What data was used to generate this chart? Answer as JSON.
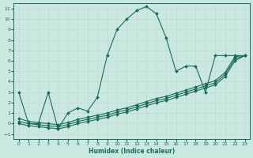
{
  "xlabel": "Humidex (Indice chaleur)",
  "bg_color": "#c8e8e0",
  "grid_color": "#d4e8e4",
  "line_color": "#1a6b5a",
  "marker": "D",
  "markersize": 2.0,
  "linewidth": 0.8,
  "xlim": [
    -0.5,
    23.5
  ],
  "ylim": [
    -1.5,
    11.5
  ],
  "xticks": [
    0,
    1,
    2,
    3,
    4,
    5,
    6,
    7,
    8,
    9,
    10,
    11,
    12,
    13,
    14,
    15,
    16,
    17,
    18,
    19,
    20,
    21,
    22,
    23
  ],
  "yticks": [
    -1,
    0,
    1,
    2,
    3,
    4,
    5,
    6,
    7,
    8,
    9,
    10,
    11
  ],
  "lines": [
    {
      "x": [
        0,
        1,
        2,
        3,
        4,
        5,
        6,
        7,
        8,
        9,
        10,
        11,
        12,
        13,
        14,
        15,
        16,
        17,
        18,
        19,
        20,
        21,
        22,
        23
      ],
      "y": [
        3.0,
        0.0,
        0.0,
        3.0,
        -0.5,
        1.0,
        1.5,
        1.2,
        2.5,
        6.5,
        9.0,
        10.0,
        10.8,
        11.2,
        10.5,
        8.2,
        5.0,
        5.5,
        5.5,
        3.0,
        6.5,
        6.5,
        6.5,
        6.5
      ]
    },
    {
      "x": [
        0,
        1,
        2,
        3,
        4,
        5,
        6,
        7,
        8,
        9,
        10,
        11,
        12,
        13,
        14,
        15,
        16,
        17,
        18,
        19,
        20,
        21,
        22,
        23
      ],
      "y": [
        0.0,
        -0.2,
        -0.3,
        -0.4,
        -0.5,
        -0.3,
        0.0,
        0.2,
        0.4,
        0.6,
        0.9,
        1.1,
        1.4,
        1.7,
        2.0,
        2.2,
        2.5,
        2.8,
        3.1,
        3.4,
        3.7,
        4.5,
        6.0,
        6.5
      ]
    },
    {
      "x": [
        0,
        1,
        2,
        3,
        4,
        5,
        6,
        7,
        8,
        9,
        10,
        11,
        12,
        13,
        14,
        15,
        16,
        17,
        18,
        19,
        20,
        21,
        22,
        23
      ],
      "y": [
        0.2,
        0.0,
        -0.1,
        -0.2,
        -0.3,
        -0.1,
        0.2,
        0.4,
        0.6,
        0.8,
        1.1,
        1.3,
        1.6,
        1.9,
        2.2,
        2.4,
        2.7,
        3.0,
        3.3,
        3.6,
        3.9,
        4.7,
        6.2,
        6.5
      ]
    },
    {
      "x": [
        0,
        1,
        2,
        3,
        4,
        5,
        6,
        7,
        8,
        9,
        10,
        11,
        12,
        13,
        14,
        15,
        16,
        17,
        18,
        19,
        20,
        21,
        22,
        23
      ],
      "y": [
        0.5,
        0.2,
        0.1,
        0.0,
        -0.1,
        0.1,
        0.4,
        0.6,
        0.8,
        1.0,
        1.3,
        1.5,
        1.8,
        2.1,
        2.4,
        2.6,
        2.9,
        3.2,
        3.5,
        3.8,
        4.1,
        4.9,
        6.4,
        6.5
      ]
    }
  ]
}
